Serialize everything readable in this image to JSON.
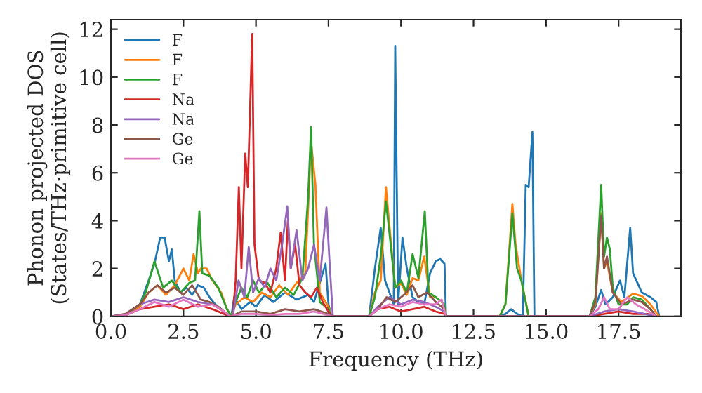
{
  "chart_data": {
    "type": "line",
    "xlabel": "Frequency (THz)",
    "ylabel": "Phonon projected DOS\n(States/THz·primitive cell)",
    "xlim": [
      0,
      19.65
    ],
    "ylim": [
      0,
      12.4
    ],
    "xticks": [
      {
        "value": 0,
        "label": "0.0"
      },
      2.5,
      {
        "value": 5,
        "label": "5.0"
      },
      7.5,
      {
        "value": 10,
        "label": "10.0"
      },
      12.5,
      {
        "value": 15,
        "label": "15.0"
      },
      17.5
    ],
    "yticks": [
      0,
      2,
      4,
      6,
      8,
      10,
      12
    ],
    "legend": "top left",
    "grid": false,
    "marker": "none",
    "line_style": "solid",
    "series": [
      {
        "name": "F",
        "color": "#1f77b4",
        "x": [
          0,
          0.5,
          1.0,
          1.3,
          1.5,
          1.7,
          1.85,
          2.0,
          2.1,
          2.2,
          2.4,
          2.6,
          2.8,
          3.0,
          3.2,
          3.4,
          3.6,
          3.8,
          4.0,
          4.15,
          4.25,
          4.5,
          4.8,
          5.0,
          5.3,
          5.6,
          6.0,
          6.4,
          6.8,
          7.0,
          7.2,
          7.4,
          7.5,
          7.6,
          8.9,
          9.1,
          9.3,
          9.45,
          9.6,
          9.75,
          9.8,
          9.9,
          10.05,
          10.2,
          10.4,
          10.6,
          10.8,
          11.0,
          11.2,
          11.35,
          11.5,
          11.55,
          13.4,
          13.6,
          13.8,
          14.0,
          14.2,
          14.3,
          14.4,
          14.53,
          14.6,
          16.5,
          16.7,
          16.9,
          17.05,
          17.3,
          17.55,
          17.7,
          17.9,
          18.0,
          18.3,
          18.6,
          18.8,
          18.9
        ],
        "values": [
          0,
          0.05,
          0.5,
          1.5,
          2.2,
          3.3,
          3.3,
          2.3,
          2.8,
          1.5,
          1.0,
          1.2,
          0.9,
          1.3,
          1.2,
          0.8,
          0.5,
          0.3,
          0.05,
          0,
          0.8,
          0.3,
          0.6,
          0.4,
          0.9,
          0.6,
          1.0,
          0.7,
          0.9,
          0.6,
          1.4,
          2.2,
          0.5,
          0,
          0,
          2.0,
          3.7,
          1.5,
          1.0,
          0.5,
          11.3,
          0.5,
          3.3,
          2.0,
          0.8,
          0.6,
          0.5,
          1.8,
          2.3,
          2.4,
          2.2,
          0,
          0,
          0.1,
          0.3,
          0.1,
          0,
          5.5,
          5.4,
          7.7,
          0,
          0,
          0.4,
          1.1,
          0.5,
          0.8,
          1.5,
          0.8,
          3.7,
          1.8,
          1.0,
          0.8,
          0.6,
          0
        ]
      },
      {
        "name": "F",
        "color": "#ff7f0e",
        "x": [
          0,
          0.5,
          1.0,
          1.3,
          1.6,
          1.9,
          2.2,
          2.5,
          2.7,
          2.85,
          3.0,
          3.1,
          3.3,
          3.5,
          3.8,
          4.0,
          4.15,
          4.3,
          4.6,
          4.9,
          5.2,
          5.5,
          5.8,
          6.1,
          6.4,
          6.7,
          6.9,
          7.05,
          7.2,
          7.5,
          7.6,
          8.9,
          9.1,
          9.3,
          9.48,
          9.6,
          9.8,
          10.0,
          10.2,
          10.4,
          10.6,
          10.8,
          11.0,
          11.2,
          11.5,
          11.55,
          13.4,
          13.6,
          13.84,
          13.95,
          14.15,
          14.4,
          16.5,
          16.7,
          16.9,
          17.0,
          17.1,
          17.3,
          17.6,
          18.0,
          18.3,
          18.6,
          18.9
        ],
        "values": [
          0,
          0.05,
          0.4,
          1.0,
          1.3,
          0.9,
          1.3,
          2.0,
          1.5,
          2.6,
          1.8,
          2.0,
          2.0,
          1.5,
          1.0,
          0.3,
          0,
          0.5,
          0.8,
          0.6,
          1.0,
          0.8,
          1.3,
          0.9,
          1.4,
          1.8,
          7.3,
          5.5,
          1.0,
          0.4,
          0,
          0,
          1.0,
          1.5,
          5.4,
          3.8,
          1.2,
          1.4,
          0.9,
          1.6,
          1.5,
          2.5,
          0.8,
          0.8,
          0.5,
          0,
          0,
          0.5,
          4.7,
          3.0,
          1.5,
          0,
          0,
          0.5,
          4.3,
          2.0,
          2.3,
          1.0,
          0.6,
          0.95,
          0.85,
          0.5,
          0
        ]
      },
      {
        "name": "F",
        "color": "#2ca02c",
        "x": [
          0,
          0.5,
          1.0,
          1.2,
          1.5,
          1.8,
          2.1,
          2.4,
          2.7,
          2.9,
          3.05,
          3.15,
          3.4,
          3.7,
          3.9,
          4.0,
          4.15,
          4.3,
          4.5,
          4.7,
          4.9,
          5.1,
          5.4,
          5.7,
          6.0,
          6.3,
          6.6,
          6.8,
          6.9,
          7.0,
          7.2,
          7.5,
          7.6,
          8.9,
          9.1,
          9.3,
          9.48,
          9.6,
          9.8,
          10.0,
          10.2,
          10.4,
          10.6,
          10.82,
          10.95,
          11.2,
          11.5,
          11.55,
          13.4,
          13.6,
          13.84,
          14.0,
          14.15,
          14.4,
          16.5,
          16.7,
          16.9,
          17.0,
          17.1,
          17.2,
          17.3,
          17.5,
          17.8,
          18.0,
          18.3,
          18.6,
          18.8
        ],
        "values": [
          0,
          0.05,
          0.5,
          1.0,
          2.3,
          1.2,
          1.5,
          1.0,
          1.4,
          1.5,
          4.4,
          1.8,
          1.7,
          1.2,
          0.6,
          0.3,
          0,
          0.6,
          1.2,
          0.8,
          1.5,
          1.0,
          1.4,
          0.8,
          1.2,
          0.9,
          1.6,
          5.0,
          7.9,
          3.0,
          0.6,
          0.3,
          0,
          0,
          0.8,
          2.5,
          4.8,
          3.5,
          1.2,
          1.5,
          1.0,
          2.6,
          1.6,
          4.4,
          1.0,
          0.8,
          0.5,
          0,
          0,
          0.5,
          4.3,
          2.0,
          1.5,
          0,
          0,
          0.8,
          5.5,
          2.5,
          3.3,
          2.8,
          1.2,
          0.5,
          0.5,
          0.8,
          0.7,
          0.3,
          0
        ]
      },
      {
        "name": "Na",
        "color": "#d62728",
        "x": [
          0,
          0.5,
          1.0,
          1.5,
          2.0,
          2.5,
          3.0,
          3.5,
          3.9,
          4.1,
          4.2,
          4.3,
          4.41,
          4.5,
          4.63,
          4.72,
          4.87,
          4.95,
          5.1,
          5.3,
          5.5,
          5.7,
          5.85,
          6.0,
          6.1,
          6.2,
          6.35,
          6.5,
          6.7,
          6.9,
          7.1,
          7.3,
          7.5,
          7.6,
          8.9,
          9.2,
          9.6,
          10.0,
          10.4,
          10.8,
          11.2,
          11.5,
          11.55,
          16.5,
          17.0,
          17.5,
          18.0,
          18.5,
          18.8
        ],
        "values": [
          0,
          0.05,
          0.3,
          0.4,
          0.5,
          0.3,
          0.5,
          0.3,
          0.1,
          0,
          0,
          1.5,
          5.4,
          2.0,
          6.8,
          5.4,
          11.8,
          3.0,
          1.5,
          1.4,
          1.0,
          2.0,
          3.5,
          1.5,
          4.0,
          2.0,
          3.0,
          1.3,
          1.0,
          0.8,
          1.2,
          0.6,
          0.2,
          0,
          0,
          0.3,
          0.4,
          0.2,
          0.3,
          0.4,
          0.2,
          0.1,
          0,
          0,
          0.1,
          0.2,
          0.1,
          0.1,
          0
        ]
      },
      {
        "name": "Na",
        "color": "#9467bd",
        "x": [
          0,
          0.5,
          1.0,
          1.5,
          2.0,
          2.5,
          3.0,
          3.5,
          3.9,
          4.1,
          4.2,
          4.4,
          4.6,
          4.75,
          4.9,
          5.1,
          5.3,
          5.5,
          5.7,
          5.9,
          6.08,
          6.2,
          6.4,
          6.6,
          6.8,
          7.0,
          7.2,
          7.43,
          7.55,
          7.65,
          8.9,
          9.2,
          9.6,
          10.0,
          10.4,
          10.8,
          11.2,
          11.5,
          11.55,
          16.5,
          17.0,
          17.5,
          18.0,
          18.8
        ],
        "values": [
          0,
          0.1,
          0.5,
          0.7,
          0.6,
          0.8,
          0.6,
          0.5,
          0.2,
          0,
          0,
          1.5,
          0.8,
          2.9,
          1.0,
          1.6,
          1.2,
          2.0,
          1.5,
          3.0,
          4.6,
          2.0,
          3.6,
          1.5,
          2.0,
          3.0,
          1.5,
          4.55,
          2.0,
          0,
          0,
          0.4,
          0.8,
          0.5,
          0.7,
          0.6,
          0.4,
          0.2,
          0,
          0,
          0.2,
          0.3,
          0.2,
          0
        ]
      },
      {
        "name": "Ge",
        "color": "#8c564b",
        "x": [
          0,
          0.5,
          1.0,
          1.3,
          1.6,
          1.9,
          2.2,
          2.5,
          2.8,
          3.1,
          3.4,
          3.7,
          4.0,
          4.15,
          4.5,
          5.0,
          5.5,
          6.0,
          6.5,
          7.0,
          7.5,
          7.6,
          8.9,
          9.2,
          9.5,
          9.8,
          10.1,
          10.4,
          10.6,
          10.9,
          11.2,
          11.5,
          11.55,
          16.5,
          16.7,
          16.9,
          17.0,
          17.1,
          17.3,
          17.6,
          18.0,
          18.3,
          18.6,
          18.8
        ],
        "values": [
          0,
          0.1,
          0.5,
          1.0,
          1.3,
          1.0,
          1.2,
          0.9,
          1.3,
          0.7,
          0.6,
          0.4,
          0.1,
          0,
          0.2,
          0.2,
          0.1,
          0.3,
          0.2,
          0.3,
          0.1,
          0,
          0,
          0.3,
          0.8,
          0.6,
          0.9,
          1.3,
          0.8,
          1.0,
          0.6,
          0.3,
          0,
          0,
          0.6,
          4.2,
          2.0,
          2.5,
          1.0,
          0.5,
          0.7,
          0.6,
          0.3,
          0
        ]
      },
      {
        "name": "Ge",
        "color": "#e377c2",
        "x": [
          0,
          0.5,
          1.0,
          1.5,
          2.0,
          2.5,
          3.0,
          3.5,
          3.9,
          4.1,
          4.5,
          5.0,
          5.5,
          6.0,
          6.5,
          7.0,
          7.5,
          7.6,
          8.9,
          9.2,
          9.6,
          10.0,
          10.4,
          10.8,
          11.2,
          11.4,
          11.55,
          16.5,
          16.8,
          17.0,
          17.2,
          17.5,
          17.8,
          18.1,
          18.4,
          18.8
        ],
        "values": [
          0,
          0.05,
          0.3,
          0.6,
          0.4,
          0.7,
          0.4,
          0.5,
          0.2,
          0,
          0.1,
          0.1,
          0.05,
          0.1,
          0.1,
          0.2,
          0.05,
          0,
          0,
          0.3,
          0.5,
          0.4,
          0.6,
          0.5,
          0.5,
          0.7,
          0,
          0,
          0.3,
          0.8,
          0.3,
          0.3,
          0.8,
          0.5,
          0.3,
          0
        ]
      }
    ]
  }
}
